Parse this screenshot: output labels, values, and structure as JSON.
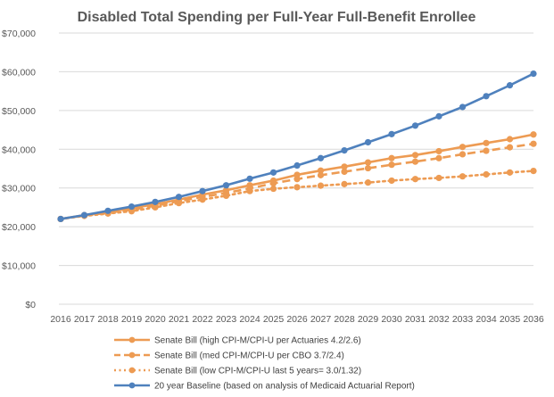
{
  "chart_data": {
    "type": "line",
    "title": "Disabled Total Spending per Full-Year Full-Benefit Enrollee",
    "xlabel": "",
    "ylabel": "",
    "ylim": [
      0,
      70000
    ],
    "yticks": [
      "$0",
      "$10,000",
      "$20,000",
      "$30,000",
      "$40,000",
      "$50,000",
      "$60,000",
      "$70,000"
    ],
    "ytick_values": [
      0,
      10000,
      20000,
      30000,
      40000,
      50000,
      60000,
      70000
    ],
    "grid": true,
    "legend_position": "bottom",
    "categories": [
      "2016",
      "2017",
      "2018",
      "2019",
      "2020",
      "2021",
      "2022",
      "2023",
      "2024",
      "2025",
      "2026",
      "2027",
      "2028",
      "2029",
      "2030",
      "2031",
      "2032",
      "2033",
      "2034",
      "2035",
      "2036"
    ],
    "series": [
      {
        "name": "Senate Bill (high CPI-M/CPI-U per Actuaries 4.2/2.6)",
        "color": "#ED9B53",
        "dash": "solid",
        "values": [
          22000,
          23000,
          23800,
          24800,
          25800,
          27000,
          28300,
          29400,
          30700,
          31900,
          33400,
          34500,
          35500,
          36600,
          37700,
          38500,
          39500,
          40600,
          41600,
          42600,
          43800
        ]
      },
      {
        "name": "Senate Bill (med CPI-M/CPI-U per CBO 3.7/2.4)",
        "color": "#ED9B53",
        "dash": "dashed",
        "values": [
          22000,
          22900,
          23600,
          24400,
          25400,
          26600,
          27700,
          28700,
          29900,
          31200,
          32300,
          33300,
          34200,
          35100,
          36000,
          36800,
          37700,
          38700,
          39600,
          40500,
          41400
        ]
      },
      {
        "name": "Senate Bill (low CPI-M/CPI-U last 5 years= 3.0/1.32)",
        "color": "#ED9B53",
        "dash": "dotted",
        "values": [
          22000,
          22800,
          23400,
          24000,
          25000,
          26100,
          27000,
          28000,
          29200,
          29800,
          30200,
          30600,
          31000,
          31400,
          31900,
          32300,
          32600,
          33000,
          33500,
          34000,
          34400
        ]
      },
      {
        "name": "20 year Baseline (based on analysis of Medicaid Actuarial Report)",
        "color": "#4F81BD",
        "dash": "solid",
        "values": [
          22000,
          23000,
          24100,
          25200,
          26400,
          27700,
          29200,
          30700,
          32400,
          34000,
          35800,
          37700,
          39700,
          41800,
          43900,
          46100,
          48500,
          50900,
          53700,
          56500,
          59500
        ]
      }
    ]
  }
}
